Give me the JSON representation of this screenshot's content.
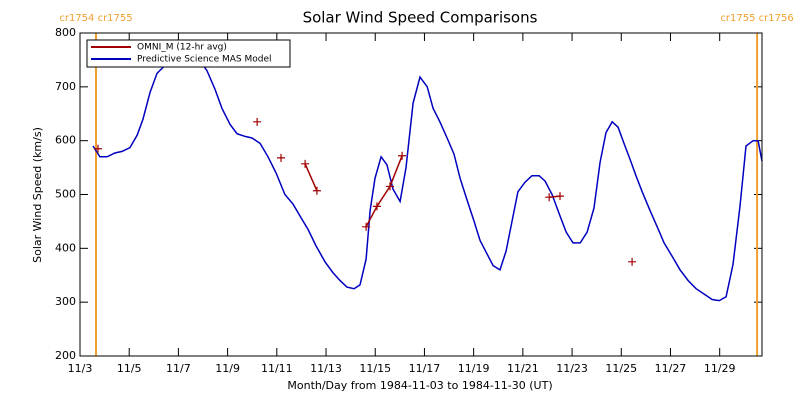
{
  "chart_data": {
    "type": "line",
    "title": "Solar Wind Speed Comparisons",
    "xlabel": "Month/Day from 1984-11-03 to 1984-11-30 (UT)",
    "ylabel": "Solar Wind Speed (km/s)",
    "xlim": [
      0,
      27.72
    ],
    "ylim": [
      200,
      800
    ],
    "xticks": [
      {
        "value": 0,
        "label": "11/3"
      },
      {
        "value": 2,
        "label": "11/5"
      },
      {
        "value": 4,
        "label": "11/7"
      },
      {
        "value": 6,
        "label": "11/9"
      },
      {
        "value": 8,
        "label": "11/11"
      },
      {
        "value": 10,
        "label": "11/13"
      },
      {
        "value": 12,
        "label": "11/15"
      },
      {
        "value": 14,
        "label": "11/17"
      },
      {
        "value": 16,
        "label": "11/19"
      },
      {
        "value": 18,
        "label": "11/21"
      },
      {
        "value": 20,
        "label": "11/23"
      },
      {
        "value": 22,
        "label": "11/25"
      },
      {
        "value": 24,
        "label": "11/27"
      },
      {
        "value": 26,
        "label": "11/29"
      }
    ],
    "yticks": [
      200,
      300,
      400,
      500,
      600,
      700,
      800
    ],
    "legend": "upper left",
    "boundaries": [
      {
        "label": "cr1754 cr1755",
        "x": 0.65,
        "color": "#f0a030"
      },
      {
        "label": "cr1755 cr1756",
        "x": 27.52,
        "color": "#f0a030"
      }
    ],
    "series": [
      {
        "name": "OMNI_M (12-hr avg)",
        "color": "#a00000",
        "markers": true,
        "x": [
          0.73,
          null,
          7.2,
          null,
          8.17,
          null,
          9.15,
          9.63,
          null,
          11.63,
          12.07,
          12.6,
          13.09,
          null,
          19.07,
          19.51,
          null,
          22.44
        ],
        "values": [
          585,
          null,
          635,
          null,
          568,
          null,
          557,
          507,
          null,
          440,
          478,
          515,
          572,
          null,
          495,
          497,
          null,
          375
        ]
      },
      {
        "name": "Predictive Science MAS Model",
        "color": "#0000c0",
        "markers": false,
        "x": [
          0.53,
          0.81,
          1.1,
          1.42,
          1.71,
          2.03,
          2.32,
          2.56,
          2.85,
          3.13,
          3.46,
          3.74,
          4.07,
          4.47,
          4.88,
          5.16,
          5.49,
          5.77,
          6.1,
          6.38,
          6.71,
          6.99,
          7.32,
          7.64,
          7.97,
          8.33,
          8.66,
          8.94,
          9.27,
          9.59,
          9.96,
          10.28,
          10.57,
          10.85,
          11.14,
          11.38,
          11.63,
          11.79,
          11.99,
          12.24,
          12.48,
          12.72,
          13.01,
          13.25,
          13.54,
          13.82,
          14.11,
          14.35,
          14.63,
          14.92,
          15.2,
          15.45,
          15.73,
          16.02,
          16.26,
          16.54,
          16.79,
          17.07,
          17.32,
          17.56,
          17.8,
          18.09,
          18.37,
          18.66,
          18.9,
          19.19,
          19.47,
          19.76,
          20.04,
          20.33,
          20.61,
          20.89,
          21.14,
          21.38,
          21.63,
          21.87,
          22.11,
          22.36,
          22.6,
          22.85,
          23.17,
          23.46,
          23.74,
          24.07,
          24.39,
          24.72,
          25.04,
          25.37,
          25.69,
          25.98,
          26.26,
          26.54,
          26.83,
          27.07,
          27.36,
          27.56,
          27.72
        ],
        "values": [
          590,
          570,
          570,
          577,
          580,
          587,
          610,
          640,
          690,
          725,
          740,
          748,
          750,
          752,
          748,
          730,
          695,
          660,
          630,
          613,
          608,
          605,
          595,
          570,
          540,
          500,
          482,
          460,
          435,
          405,
          375,
          355,
          340,
          328,
          325,
          332,
          380,
          470,
          530,
          570,
          555,
          510,
          487,
          550,
          670,
          718,
          700,
          660,
          635,
          605,
          575,
          530,
          490,
          450,
          415,
          390,
          368,
          360,
          395,
          450,
          505,
          523,
          535,
          535,
          525,
          500,
          465,
          430,
          410,
          410,
          430,
          475,
          560,
          615,
          635,
          625,
          595,
          565,
          535,
          505,
          470,
          440,
          410,
          385,
          360,
          340,
          325,
          315,
          305,
          303,
          310,
          370,
          480,
          590,
          600,
          600,
          562
        ]
      }
    ]
  }
}
